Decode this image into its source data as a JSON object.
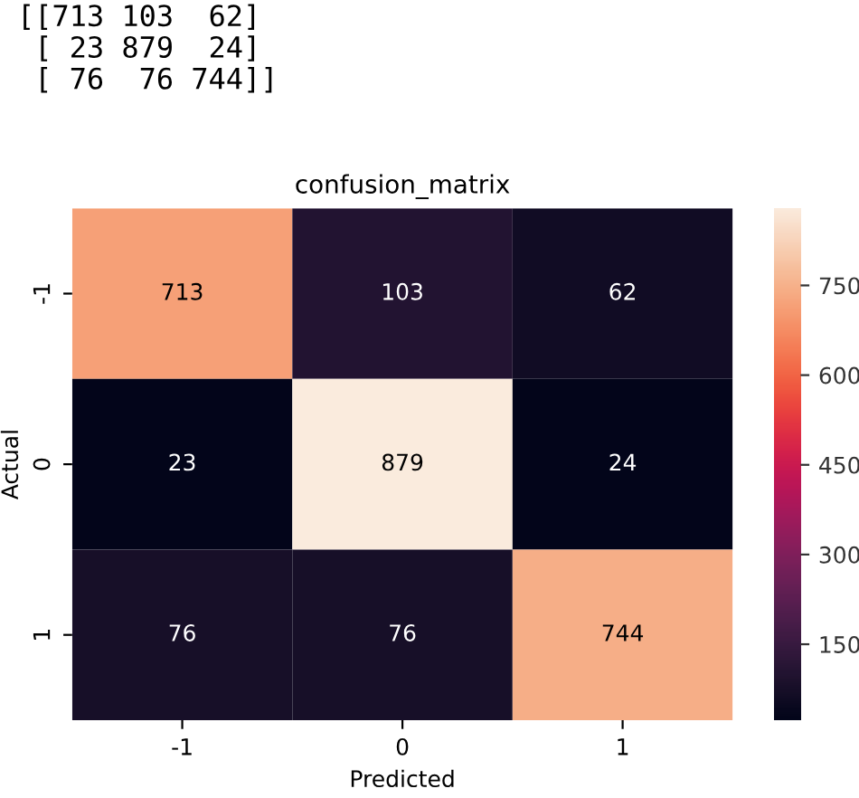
{
  "chart_data": {
    "type": "heatmap",
    "title": "confusion_matrix",
    "xlabel": "Predicted",
    "ylabel": "Actual",
    "annotations": [
      "[[713 103  62]\n [ 23 879  24]\n [ 76  76 744]]"
    ],
    "categories": [
      "-1",
      "0",
      "1"
    ],
    "y_categories": [
      "-1",
      "0",
      "1"
    ],
    "cells": [
      [
        713,
        103,
        62
      ],
      [
        23,
        879,
        24
      ],
      [
        76,
        76,
        744
      ]
    ],
    "data_labels": true,
    "clim": [
      23,
      879
    ],
    "cticks": [
      150,
      300,
      450,
      600,
      750
    ]
  }
}
